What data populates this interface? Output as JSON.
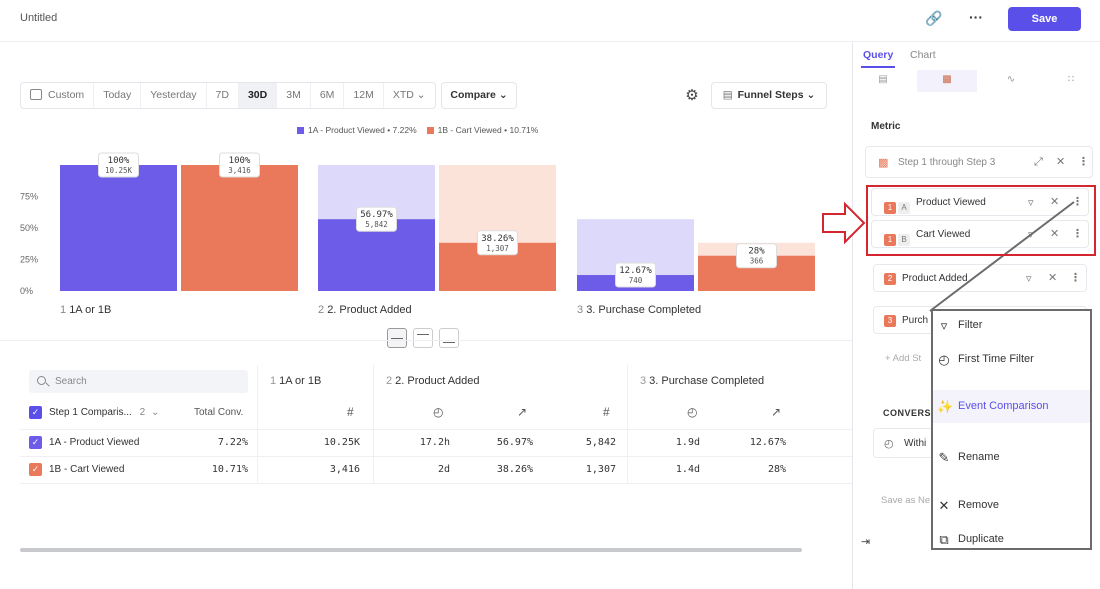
{
  "header": {
    "title": "Untitled",
    "save_label": "Save",
    "link_icon": "link-icon",
    "more_icon": "more-horizontal-icon"
  },
  "toolbar": {
    "date_ranges": [
      "Custom",
      "Today",
      "Yesterday",
      "7D",
      "30D",
      "3M",
      "6M",
      "12M",
      "XTD"
    ],
    "active_range": "30D",
    "compare_label": "Compare",
    "funnel_label": "Funnel Steps"
  },
  "legend": [
    {
      "label": "1A - Product Viewed • 7.22%",
      "color": "#6c5ce7"
    },
    {
      "label": "1B - Cart Viewed • 10.71%",
      "color": "#e9795a"
    }
  ],
  "chart_data": {
    "type": "bar",
    "y_ticks": [
      "75%",
      "50%",
      "25%",
      "0%"
    ],
    "ylim": [
      0,
      100
    ],
    "categories": [
      {
        "num": "1",
        "label": "1A or 1B"
      },
      {
        "num": "2",
        "label": "2. Product Added"
      },
      {
        "num": "3",
        "label": "3. Purchase Completed"
      }
    ],
    "series": [
      {
        "color": "#6c5ce7",
        "light": "#ddd9fb",
        "values": [
          100,
          56.97,
          12.67
        ],
        "pct_labels": [
          "100%",
          "56.97%",
          "12.67%"
        ],
        "count_labels": [
          "10.25K",
          "5,842",
          "740"
        ]
      },
      {
        "color": "#e9795a",
        "light": "#fbe3da",
        "values": [
          100,
          38.26,
          28
        ],
        "pct_labels": [
          "100%",
          "38.26%",
          "28%"
        ],
        "count_labels": [
          "3,416",
          "1,307",
          "366"
        ]
      }
    ],
    "ghost_values": [
      [
        100,
        100,
        57
      ],
      [
        100,
        100,
        38.26
      ]
    ]
  },
  "table": {
    "search_placeholder": "Search",
    "step_header": "Step 1 Comparis...",
    "step_count": "2",
    "total_conv_header": "Total Conv.",
    "columns": [
      {
        "num": "1",
        "label": "1A or 1B"
      },
      {
        "num": "2",
        "label": "2. Product Added"
      },
      {
        "num": "3",
        "label": "3. Purchase Completed"
      }
    ],
    "rows": [
      {
        "name": "1A - Product Viewed",
        "color": "#6c5ce7",
        "total": "7.22%",
        "s1_count": "10.25K",
        "s2_time": "17.2h",
        "s2_pct": "56.97%",
        "s2_count": "5,842",
        "s3_time": "1.9d",
        "s3_pct": "12.67%"
      },
      {
        "name": "1B - Cart Viewed",
        "color": "#e9795a",
        "total": "10.71%",
        "s1_count": "3,416",
        "s2_time": "2d",
        "s2_pct": "38.26%",
        "s2_count": "1,307",
        "s3_time": "1.4d",
        "s3_pct": "28%"
      }
    ]
  },
  "panel": {
    "tabs": [
      "Query",
      "Chart"
    ],
    "metric_label": "Metric",
    "step_range": "Step 1 through Step 3",
    "events": [
      {
        "step": "1",
        "letter": "A",
        "label": "Product Viewed"
      },
      {
        "step": "1",
        "letter": "B",
        "label": "Cart Viewed"
      }
    ],
    "step2": {
      "step": "2",
      "label": "Product Added"
    },
    "step3": {
      "step": "3",
      "label": "Purch"
    },
    "add_step": "+ Add St",
    "conversion_label": "CONVERS",
    "within_label": "Withi",
    "save_as_new": "Save as Ne"
  },
  "context_menu": {
    "items": [
      {
        "label": "Filter",
        "icon": "filter-icon"
      },
      {
        "label": "First Time Filter",
        "icon": "clock-icon"
      },
      {
        "label": "Event Comparison",
        "icon": "sparkle-icon"
      },
      {
        "label": "Rename",
        "icon": "pencil-icon"
      },
      {
        "label": "Remove",
        "icon": "close-icon"
      },
      {
        "label": "Duplicate",
        "icon": "duplicate-icon"
      }
    ]
  }
}
